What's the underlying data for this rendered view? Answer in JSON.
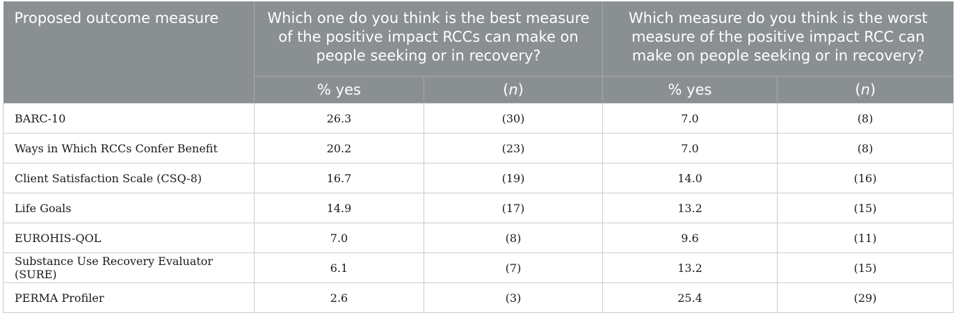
{
  "table": {
    "header": {
      "col0": "Proposed outcome measure",
      "group_best": "Which one do you think is the best measure of the positive impact RCCs can make on people seeking or in recovery?",
      "group_worst": "Which measure do you think is the worst measure of the positive impact RCC can make on people seeking or in recovery?",
      "pct_label": "% yes",
      "n_open": "(",
      "n_letter": "n",
      "n_close": ")"
    },
    "rows": [
      {
        "measure": "BARC-10",
        "best_pct": "26.3",
        "best_n": "(30)",
        "worst_pct": "7.0",
        "worst_n": "(8)"
      },
      {
        "measure": "Ways in Which RCCs Confer Benefit",
        "best_pct": "20.2",
        "best_n": "(23)",
        "worst_pct": "7.0",
        "worst_n": "(8)"
      },
      {
        "measure": "Client Satisfaction Scale (CSQ-8)",
        "best_pct": "16.7",
        "best_n": "(19)",
        "worst_pct": "14.0",
        "worst_n": "(16)"
      },
      {
        "measure": "Life Goals",
        "best_pct": "14.9",
        "best_n": "(17)",
        "worst_pct": "13.2",
        "worst_n": "(15)"
      },
      {
        "measure": "EUROHIS-QOL",
        "best_pct": "7.0",
        "best_n": "(8)",
        "worst_pct": "9.6",
        "worst_n": "(11)"
      },
      {
        "measure": "Substance Use Recovery Evaluator (SURE)",
        "best_pct": "6.1",
        "best_n": "(7)",
        "worst_pct": "13.2",
        "worst_n": "(15)"
      },
      {
        "measure": "PERMA Profiler",
        "best_pct": "2.6",
        "best_n": "(3)",
        "worst_pct": "25.4",
        "worst_n": "(29)"
      }
    ],
    "colors": {
      "header_bg": "#8a8f91",
      "header_text": "#ffffff",
      "border": "#c8cbcc"
    }
  }
}
